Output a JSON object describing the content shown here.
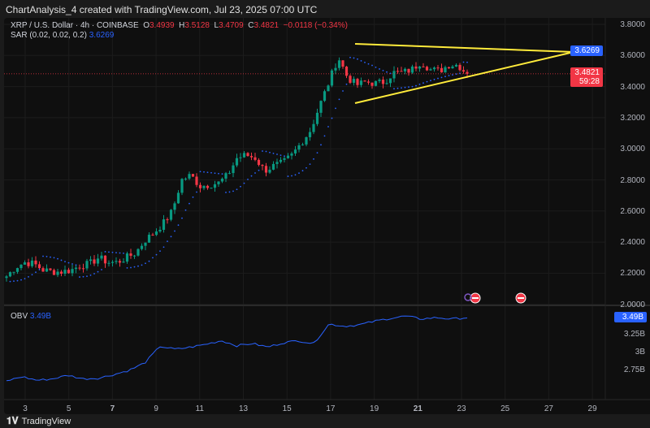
{
  "title": "ChartAnalysis_4 created with TradingView.com, Jul 23, 2025 07:00 UTC",
  "legend": {
    "symbol": "XRP / U.S. Dollar · 4h · COINBASE",
    "o_label": "O",
    "o": "3.4939",
    "h_label": "H",
    "h": "3.5128",
    "l_label": "L",
    "l": "3.4709",
    "c_label": "C",
    "c": "3.4821",
    "change": "−0.0118 (−0.34%)",
    "sar_label": "SAR (0.02, 0.02, 0.2)",
    "sar_value": "3.6269"
  },
  "price_axis": [
    "3.8000",
    "3.6000",
    "3.4000",
    "3.2000",
    "3.0000",
    "2.8000",
    "2.6000",
    "2.4000",
    "2.2000",
    "2.0000"
  ],
  "sar_tag": "3.6269",
  "last_price_tag": "3.4821",
  "countdown": "59:28",
  "obv": {
    "label": "OBV",
    "value": "3.49B",
    "axis": [
      "3.25B",
      "3B",
      "2.75B"
    ],
    "tag": "3.49B"
  },
  "x_axis": [
    "3",
    "5",
    "7",
    "9",
    "11",
    "13",
    "15",
    "17",
    "19",
    "21",
    "23",
    "25",
    "27",
    "29"
  ],
  "colors": {
    "up": "#089981",
    "down": "#f23645",
    "sar": "#2962ff",
    "triangle": "#ffeb3b",
    "obv": "#2962ff"
  },
  "footer": {
    "brand": "TradingView"
  },
  "chart_data": {
    "type": "candlestick",
    "ylim": [
      2.0,
      3.8
    ],
    "approx_closes": [
      2.18,
      2.24,
      2.27,
      2.26,
      2.22,
      2.21,
      2.21,
      2.22,
      2.25,
      2.26,
      2.3,
      2.27,
      2.27,
      2.3,
      2.33,
      2.41,
      2.46,
      2.52,
      2.6,
      2.8,
      2.83,
      2.76,
      2.77,
      2.78,
      2.83,
      2.94,
      2.96,
      2.94,
      2.86,
      2.89,
      2.91,
      2.96,
      3.04,
      3.12,
      3.28,
      3.43,
      3.59,
      3.46,
      3.41,
      3.43,
      3.42,
      3.43,
      3.49,
      3.49,
      3.51,
      3.56,
      3.51,
      3.5,
      3.54,
      3.54,
      3.48
    ],
    "obv_billions": [
      2.61,
      2.67,
      2.62,
      2.64,
      2.69,
      2.64,
      2.65,
      2.7,
      2.76,
      2.86,
      3.09,
      3.05,
      3.08,
      3.12,
      3.17,
      3.1,
      3.13,
      3.08,
      3.14,
      3.17,
      3.13,
      3.4,
      3.37,
      3.39,
      3.44,
      3.48,
      3.51,
      3.47,
      3.49,
      3.47,
      3.49
    ],
    "triangle": {
      "upper": [
        [
          "Jul 18",
          3.66
        ],
        [
          "Jul 28",
          3.61
        ]
      ],
      "lower": [
        [
          "Jul 18",
          3.28
        ],
        [
          "Jul 28",
          3.61
        ]
      ]
    }
  }
}
